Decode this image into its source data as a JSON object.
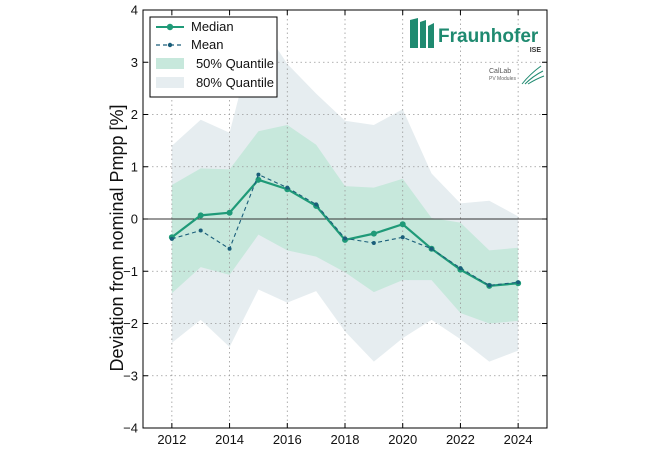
{
  "chart_data": {
    "type": "line",
    "ylabel": "Deviation from nominal Pmpp [%]",
    "xlabel": "",
    "xlim": [
      2011,
      2025
    ],
    "ylim": [
      -4,
      4
    ],
    "xticks": [
      2012,
      2014,
      2016,
      2018,
      2020,
      2022,
      2024
    ],
    "yticks": [
      -4,
      -3,
      -2,
      -1,
      0,
      1,
      2,
      3,
      4
    ],
    "grid": true,
    "legend_position": "top-left",
    "x": [
      2012,
      2013,
      2014,
      2015,
      2016,
      2017,
      2018,
      2019,
      2020,
      2021,
      2022,
      2023,
      2024
    ],
    "series": [
      {
        "name": "Median",
        "style": "solid-dot",
        "color": "#1f9a78",
        "values": [
          -0.35,
          0.07,
          0.12,
          0.75,
          0.57,
          0.25,
          -0.4,
          -0.28,
          -0.1,
          -0.57,
          -0.97,
          -1.28,
          -1.23
        ]
      },
      {
        "name": "Mean",
        "style": "dashed-dot",
        "color": "#1a5e7a",
        "values": [
          -0.38,
          -0.22,
          -0.57,
          0.85,
          0.6,
          0.28,
          -0.37,
          -0.46,
          -0.35,
          -0.57,
          -0.94,
          -1.27,
          -1.21
        ]
      }
    ],
    "bands": [
      {
        "name": "80% Quantile",
        "color": "#e6edf0",
        "lower": [
          -2.37,
          -1.93,
          -2.45,
          -1.35,
          -1.6,
          -1.38,
          -2.15,
          -2.73,
          -2.28,
          -1.93,
          -2.3,
          -2.73,
          -2.52
        ],
        "upper": [
          1.4,
          1.9,
          1.65,
          3.8,
          2.97,
          2.4,
          1.88,
          1.8,
          2.1,
          0.87,
          0.3,
          0.35,
          0.05
        ]
      },
      {
        "name": "50% Quantile",
        "color": "#c7e8dc",
        "lower": [
          -1.42,
          -0.92,
          -1.07,
          -0.3,
          -0.6,
          -0.72,
          -1.02,
          -1.4,
          -1.17,
          -1.17,
          -1.8,
          -2.0,
          -1.95
        ],
        "upper": [
          0.65,
          0.97,
          0.95,
          1.68,
          1.8,
          1.42,
          0.63,
          0.6,
          0.77,
          0.02,
          -0.07,
          -0.6,
          -0.55
        ]
      }
    ],
    "legend": [
      "Median",
      "Mean",
      "50% Quantile",
      "80% Quantile"
    ]
  },
  "logo": {
    "name": "Fraunhofer",
    "institute": "ISE",
    "sub_brand": "CalLab",
    "sub_brand_detail": "PV Modules",
    "color": "#1f8a70"
  },
  "colors": {
    "axis": "#000000",
    "grid": "#999999",
    "zero_line": "#333333"
  }
}
